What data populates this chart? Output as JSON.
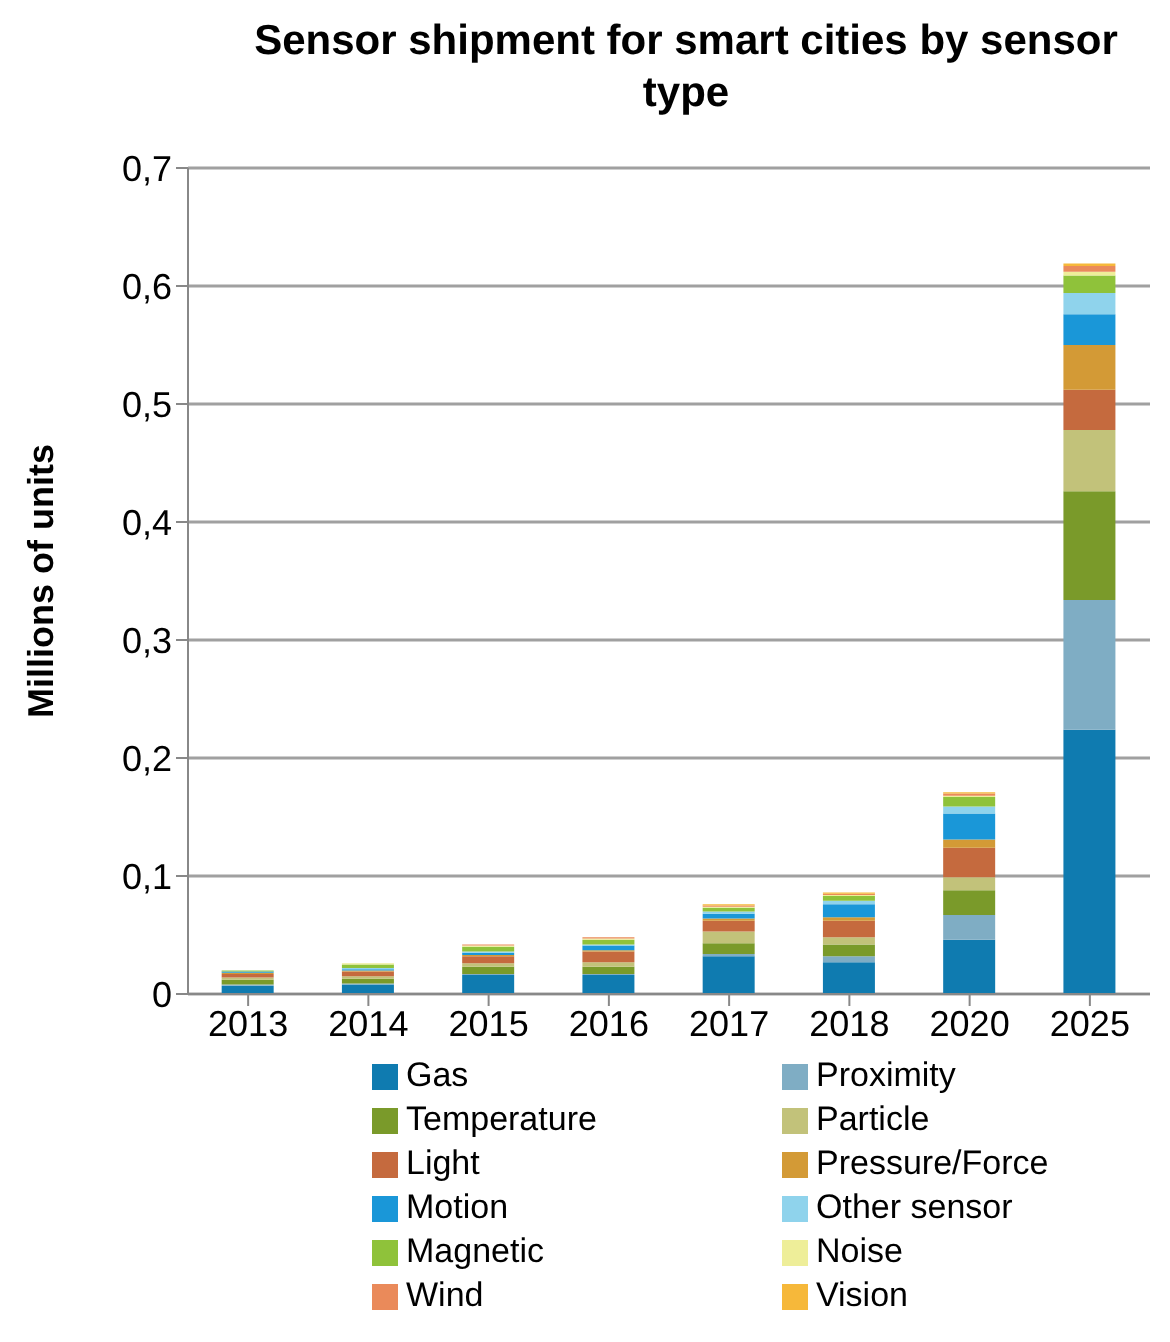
{
  "chart_data": {
    "type": "bar",
    "stacked": true,
    "title": "Sensor shipment for smart cities by sensor type",
    "ylabel": "Millions of units",
    "categories": [
      "2013",
      "2014",
      "2015",
      "2016",
      "2017",
      "2018",
      "2020",
      "2025"
    ],
    "series": [
      {
        "name": "Gas",
        "color": "#0f7bb0",
        "values": [
          0.007,
          0.008,
          0.016,
          0.016,
          0.032,
          0.027,
          0.046,
          0.224
        ]
      },
      {
        "name": "Proximity",
        "color": "#7fadc4",
        "values": [
          0.001,
          0.001,
          0.001,
          0.001,
          0.002,
          0.005,
          0.021,
          0.11
        ]
      },
      {
        "name": "Temperature",
        "color": "#7a9a2a",
        "values": [
          0.004,
          0.004,
          0.006,
          0.006,
          0.009,
          0.01,
          0.021,
          0.092
        ]
      },
      {
        "name": "Particle",
        "color": "#c2c27a",
        "values": [
          0.002,
          0.002,
          0.003,
          0.004,
          0.01,
          0.006,
          0.011,
          0.052
        ]
      },
      {
        "name": "Light",
        "color": "#c56a3e",
        "values": [
          0.003,
          0.004,
          0.006,
          0.009,
          0.009,
          0.014,
          0.025,
          0.034
        ]
      },
      {
        "name": "Pressure/Force",
        "color": "#d39a36",
        "values": [
          0.001,
          0.001,
          0.001,
          0.001,
          0.002,
          0.003,
          0.007,
          0.038
        ]
      },
      {
        "name": "Motion",
        "color": "#1a97d8",
        "values": [
          0.001,
          0.001,
          0.002,
          0.004,
          0.004,
          0.011,
          0.022,
          0.026
        ]
      },
      {
        "name": "Other sensor",
        "color": "#8fd3ec",
        "values": [
          0,
          0.001,
          0.001,
          0.001,
          0.002,
          0.003,
          0.006,
          0.018
        ]
      },
      {
        "name": "Magnetic",
        "color": "#8fc23a",
        "values": [
          0.001,
          0.003,
          0.004,
          0.004,
          0.003,
          0.004,
          0.008,
          0.015
        ]
      },
      {
        "name": "Noise",
        "color": "#eeee99",
        "values": [
          0,
          0.001,
          0.001,
          0.001,
          0.001,
          0.001,
          0.001,
          0.003
        ]
      },
      {
        "name": "Wind",
        "color": "#ea8a5a",
        "values": [
          0,
          0,
          0.001,
          0.001,
          0.001,
          0.001,
          0.002,
          0.005
        ]
      },
      {
        "name": "Vision",
        "color": "#f6b83a",
        "values": [
          0,
          0,
          0,
          0,
          0.001,
          0.001,
          0.001,
          0.002
        ]
      }
    ],
    "ylim": [
      0,
      0.7
    ],
    "yticks": [
      0,
      {
        "value": 0.1,
        "label": "0,1"
      },
      {
        "value": 0.2,
        "label": "0,2"
      },
      {
        "value": 0.3,
        "label": "0,3"
      },
      {
        "value": 0.4,
        "label": "0,4"
      },
      {
        "value": 0.5,
        "label": "0,5"
      },
      {
        "value": 0.6,
        "label": "0,6"
      },
      {
        "value": 0.7,
        "label": "0,7"
      }
    ],
    "grid": "y",
    "legend": "bottom"
  }
}
